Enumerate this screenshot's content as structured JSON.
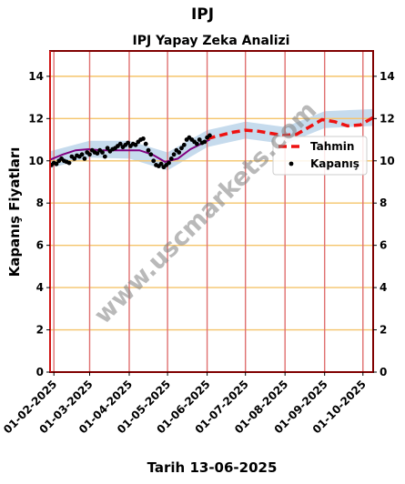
{
  "page": {
    "title": "IPJ",
    "date_label": "Tarih 13-06-2025"
  },
  "watermark": "www.uscmarkets.com",
  "chart_data": {
    "type": "line",
    "title": "IPJ Yapay Zeka Analizi",
    "xlabel": "",
    "ylabel": "Kapanış Fiyatları",
    "ylim": [
      0,
      15.2
    ],
    "xlim": [
      "2025-01-29",
      "2025-10-09"
    ],
    "y_ticks": [
      0,
      2,
      4,
      6,
      8,
      10,
      12,
      14
    ],
    "x_ticks": [
      "01-02-2025",
      "01-03-2025",
      "01-04-2025",
      "01-05-2025",
      "01-06-2025",
      "01-07-2025",
      "01-08-2025",
      "01-09-2025",
      "01-10-2025"
    ],
    "grid": true,
    "legend_position": "right",
    "colors": {
      "forecast": "#ee1111",
      "close": "#000000",
      "fit": "#800080",
      "band": "#a8c8e4",
      "hgrid": "#f5c46a",
      "vgrid": "#e07070",
      "frame": "#800000"
    },
    "series": [
      {
        "name": "Tahmin",
        "style": "dashed",
        "x": [
          "2025-06-01",
          "2025-06-11",
          "2025-06-21",
          "2025-07-01",
          "2025-07-11",
          "2025-07-21",
          "2025-07-31",
          "2025-08-10",
          "2025-08-20",
          "2025-08-30",
          "2025-09-09",
          "2025-09-19",
          "2025-09-29",
          "2025-10-09"
        ],
        "values": [
          11.05,
          11.2,
          11.35,
          11.45,
          11.4,
          11.3,
          11.2,
          11.25,
          11.6,
          11.95,
          11.85,
          11.65,
          11.7,
          12.05
        ]
      },
      {
        "name": "Kapanış",
        "style": "markers",
        "x": [
          "2025-01-30",
          "2025-02-01",
          "2025-02-03",
          "2025-02-05",
          "2025-02-07",
          "2025-02-09",
          "2025-02-11",
          "2025-02-13",
          "2025-02-15",
          "2025-02-17",
          "2025-02-19",
          "2025-02-21",
          "2025-02-23",
          "2025-02-25",
          "2025-02-27",
          "2025-03-01",
          "2025-03-03",
          "2025-03-05",
          "2025-03-07",
          "2025-03-09",
          "2025-03-11",
          "2025-03-13",
          "2025-03-15",
          "2025-03-17",
          "2025-03-19",
          "2025-03-21",
          "2025-03-23",
          "2025-03-25",
          "2025-03-27",
          "2025-03-29",
          "2025-03-31",
          "2025-04-02",
          "2025-04-04",
          "2025-04-06",
          "2025-04-08",
          "2025-04-10",
          "2025-04-12",
          "2025-04-14",
          "2025-04-16",
          "2025-04-18",
          "2025-04-20",
          "2025-04-22",
          "2025-04-24",
          "2025-04-26",
          "2025-04-28",
          "2025-04-30",
          "2025-05-02",
          "2025-05-04",
          "2025-05-06",
          "2025-05-08",
          "2025-05-10",
          "2025-05-12",
          "2025-05-14",
          "2025-05-16",
          "2025-05-18",
          "2025-05-20",
          "2025-05-22",
          "2025-05-24",
          "2025-05-26",
          "2025-05-28",
          "2025-05-30",
          "2025-06-01",
          "2025-06-03"
        ],
        "values": [
          9.8,
          9.9,
          9.85,
          10.0,
          10.1,
          10.0,
          9.95,
          9.9,
          10.2,
          10.1,
          10.25,
          10.2,
          10.3,
          10.1,
          10.4,
          10.3,
          10.5,
          10.4,
          10.35,
          10.5,
          10.4,
          10.2,
          10.6,
          10.45,
          10.55,
          10.6,
          10.7,
          10.8,
          10.65,
          10.75,
          10.85,
          10.7,
          10.8,
          10.75,
          10.9,
          11.0,
          11.05,
          10.8,
          10.5,
          10.3,
          10.0,
          9.8,
          9.75,
          9.85,
          9.7,
          9.8,
          9.9,
          10.1,
          10.3,
          10.5,
          10.4,
          10.6,
          10.75,
          11.0,
          11.1,
          11.0,
          10.9,
          10.8,
          11.0,
          10.85,
          10.9,
          11.1,
          11.2
        ]
      },
      {
        "name": "",
        "style": "line",
        "x": [
          "2025-01-29",
          "2025-02-08",
          "2025-02-18",
          "2025-02-28",
          "2025-03-10",
          "2025-03-20",
          "2025-03-30",
          "2025-04-09",
          "2025-04-19",
          "2025-04-29",
          "2025-05-09",
          "2025-05-19",
          "2025-05-29",
          "2025-06-03"
        ],
        "values": [
          10.05,
          10.3,
          10.5,
          10.55,
          10.5,
          10.5,
          10.5,
          10.5,
          10.3,
          9.95,
          10.1,
          10.55,
          10.85,
          11.0
        ]
      },
      {
        "name": "",
        "style": "band",
        "x": [
          "2025-01-29",
          "2025-03-01",
          "2025-04-01",
          "2025-05-01",
          "2025-06-01",
          "2025-07-01",
          "2025-08-01",
          "2025-09-01",
          "2025-10-09"
        ],
        "upper": [
          10.45,
          10.95,
          10.95,
          10.4,
          11.45,
          11.85,
          11.6,
          12.35,
          12.45
        ],
        "lower": [
          9.65,
          10.15,
          10.1,
          9.55,
          10.65,
          11.05,
          10.8,
          11.55,
          11.65
        ]
      }
    ]
  }
}
